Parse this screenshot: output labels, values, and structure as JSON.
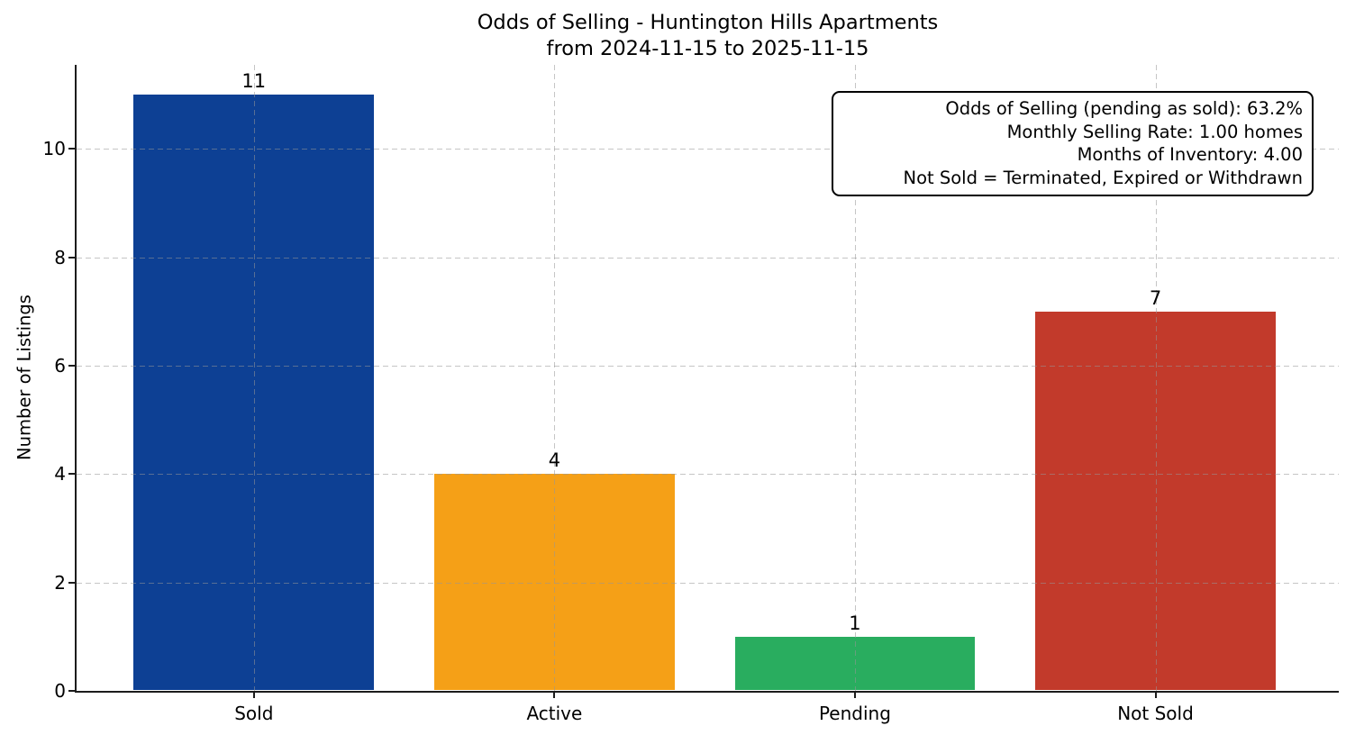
{
  "chart_data": {
    "type": "bar",
    "title": "Odds of Selling - Huntington Hills Apartments",
    "subtitle": "from 2024-11-15 to 2025-11-15",
    "categories": [
      "Sold",
      "Active",
      "Pending",
      "Not Sold"
    ],
    "values": [
      11,
      4,
      1,
      7
    ],
    "value_labels": [
      "11",
      "4",
      "1",
      "7"
    ],
    "bar_colors": [
      "#0d4094",
      "#f5a017",
      "#29ad5f",
      "#c23a2b"
    ],
    "xlabel": "",
    "ylabel": "Number of Listings",
    "yticks": [
      0,
      2,
      4,
      6,
      8,
      10
    ],
    "ylim": [
      0,
      11.55
    ],
    "grid": {
      "visible": true,
      "axes": "both",
      "style": "dashed",
      "color": "#9b9b9b"
    },
    "legend": "none",
    "annotation_box": {
      "position": "top-right",
      "text_align": "right",
      "lines": [
        "Odds of Selling (pending as sold): 63.2%",
        "Monthly Selling Rate: 1.00 homes",
        "Months of Inventory: 4.00",
        "Not Sold = Terminated, Expired or Withdrawn"
      ]
    }
  }
}
